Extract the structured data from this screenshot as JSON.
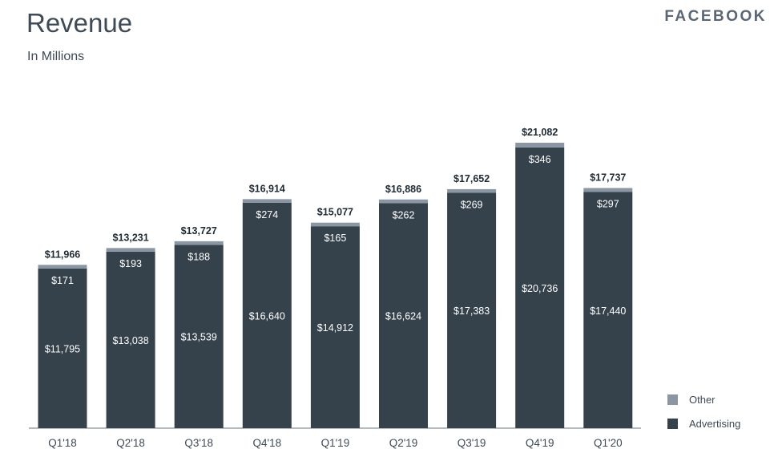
{
  "header": {
    "title": "Revenue",
    "subtitle": "In Millions",
    "brand": "FACEBOOK"
  },
  "colors": {
    "advertising": "#35414b",
    "other": "#8a97a3",
    "text_dark": "#1f2a33",
    "text_light": "#ffffff"
  },
  "chart_data": {
    "type": "bar",
    "stacked": true,
    "title": "Revenue",
    "subtitle": "In Millions",
    "categories": [
      "Q1'18",
      "Q2'18",
      "Q3'18",
      "Q4'18",
      "Q1'19",
      "Q2'19",
      "Q3'19",
      "Q4'19",
      "Q1'20"
    ],
    "series": [
      {
        "name": "Advertising",
        "values": [
          11795,
          13038,
          13539,
          16640,
          14912,
          16624,
          17383,
          20736,
          17440
        ],
        "labels": [
          "$11,795",
          "$13,038",
          "$13,539",
          "$16,640",
          "$14,912",
          "$16,624",
          "$17,383",
          "$20,736",
          "$17,440"
        ]
      },
      {
        "name": "Other",
        "values": [
          171,
          193,
          188,
          274,
          165,
          262,
          269,
          346,
          297
        ],
        "labels": [
          "$171",
          "$193",
          "$188",
          "$274",
          "$165",
          "$262",
          "$269",
          "$346",
          "$297"
        ]
      }
    ],
    "totals": [
      11966,
      13231,
      13727,
      16914,
      15077,
      16886,
      17652,
      21082,
      17737
    ],
    "total_labels": [
      "$11,966",
      "$13,231",
      "$13,727",
      "$16,914",
      "$15,077",
      "$16,886",
      "$17,652",
      "$21,082",
      "$17,737"
    ],
    "legend": [
      "Other",
      "Advertising"
    ],
    "legend_position": "bottom-right",
    "grid": false
  }
}
